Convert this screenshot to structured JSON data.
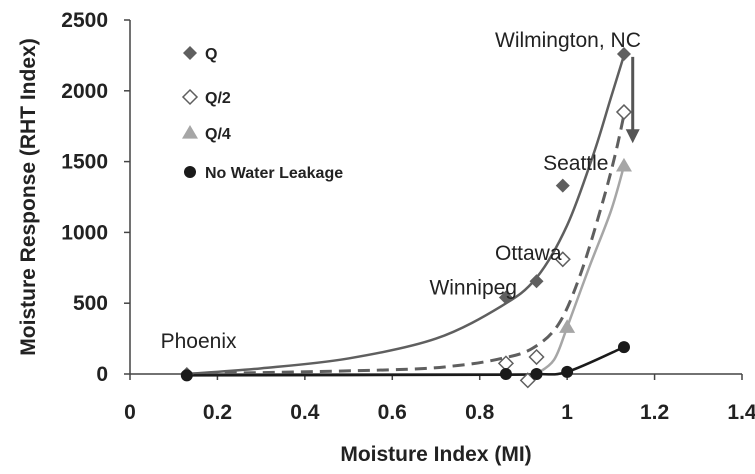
{
  "chart_data": {
    "type": "scatter",
    "title": "",
    "xlabel": "Moisture Index (MI)",
    "ylabel": "Moisture Response (RHT Index)",
    "xlim": [
      0,
      1.4
    ],
    "ylim": [
      0,
      2500
    ],
    "x_ticks": [
      "0",
      "0.2",
      "0.4",
      "0.6",
      "0.8",
      "1",
      "1.2",
      "1.4"
    ],
    "y_ticks": [
      "0",
      "500",
      "1000",
      "1500",
      "2000",
      "2500"
    ],
    "grid": false,
    "legend_position": "top-left",
    "series": [
      {
        "name": "Q",
        "marker": "diamond-filled",
        "color": "#5f5f5f",
        "line_style": "solid",
        "points": [
          {
            "x": 0.13,
            "y": 0
          },
          {
            "x": 0.86,
            "y": 540
          },
          {
            "x": 0.93,
            "y": 655
          },
          {
            "x": 0.99,
            "y": 1330
          },
          {
            "x": 1.13,
            "y": 2260
          }
        ],
        "curve": [
          [
            0.13,
            0
          ],
          [
            0.3,
            40
          ],
          [
            0.5,
            110
          ],
          [
            0.7,
            250
          ],
          [
            0.85,
            480
          ],
          [
            0.93,
            680
          ],
          [
            1.0,
            1050
          ],
          [
            1.06,
            1550
          ],
          [
            1.1,
            1950
          ],
          [
            1.13,
            2250
          ]
        ]
      },
      {
        "name": "Q/2",
        "marker": "diamond-open",
        "color": "#5f5f5f",
        "line_style": "dashed",
        "points": [
          {
            "x": 0.86,
            "y": 75
          },
          {
            "x": 0.91,
            "y": -45
          },
          {
            "x": 0.93,
            "y": 120
          },
          {
            "x": 0.99,
            "y": 810
          },
          {
            "x": 1.13,
            "y": 1850
          }
        ],
        "curve": [
          [
            0.13,
            0
          ],
          [
            0.6,
            30
          ],
          [
            0.75,
            60
          ],
          [
            0.85,
            110
          ],
          [
            0.92,
            180
          ],
          [
            0.98,
            350
          ],
          [
            1.03,
            700
          ],
          [
            1.08,
            1200
          ],
          [
            1.11,
            1550
          ],
          [
            1.13,
            1830
          ]
        ]
      },
      {
        "name": "Q/4",
        "marker": "triangle-filled",
        "color": "#a6a6a6",
        "line_style": "solid",
        "points": [
          {
            "x": 1.0,
            "y": 330
          },
          {
            "x": 1.13,
            "y": 1470
          }
        ],
        "curve": [
          [
            0.93,
            0
          ],
          [
            0.97,
            100
          ],
          [
            1.0,
            330
          ],
          [
            1.05,
            750
          ],
          [
            1.1,
            1150
          ],
          [
            1.13,
            1470
          ]
        ]
      },
      {
        "name": "No Water Leakage",
        "marker": "circle-filled",
        "color": "#1a1a1a",
        "line_style": "solid",
        "points": [
          {
            "x": 0.13,
            "y": -10
          },
          {
            "x": 0.86,
            "y": 0
          },
          {
            "x": 0.93,
            "y": 0
          },
          {
            "x": 1.0,
            "y": 15
          },
          {
            "x": 1.13,
            "y": 190
          }
        ],
        "curve": [
          [
            0.13,
            -10
          ],
          [
            0.86,
            -5
          ],
          [
            0.93,
            0
          ],
          [
            1.0,
            15
          ],
          [
            1.13,
            190
          ]
        ]
      }
    ],
    "annotations": [
      {
        "text": "Wilmington, NC",
        "x": 0.835,
        "y": 2310,
        "anchor": "start"
      },
      {
        "text": "Seattle",
        "x": 0.945,
        "y": 1440,
        "anchor": "start"
      },
      {
        "text": "Ottawa",
        "x": 0.835,
        "y": 805,
        "anchor": "start"
      },
      {
        "text": "Winnipeg",
        "x": 0.685,
        "y": 560,
        "anchor": "start"
      },
      {
        "text": "Phoenix",
        "x": 0.07,
        "y": 185,
        "anchor": "start"
      }
    ],
    "arrow": {
      "x": 1.15,
      "y_from": 2240,
      "y_to": 1630
    }
  }
}
